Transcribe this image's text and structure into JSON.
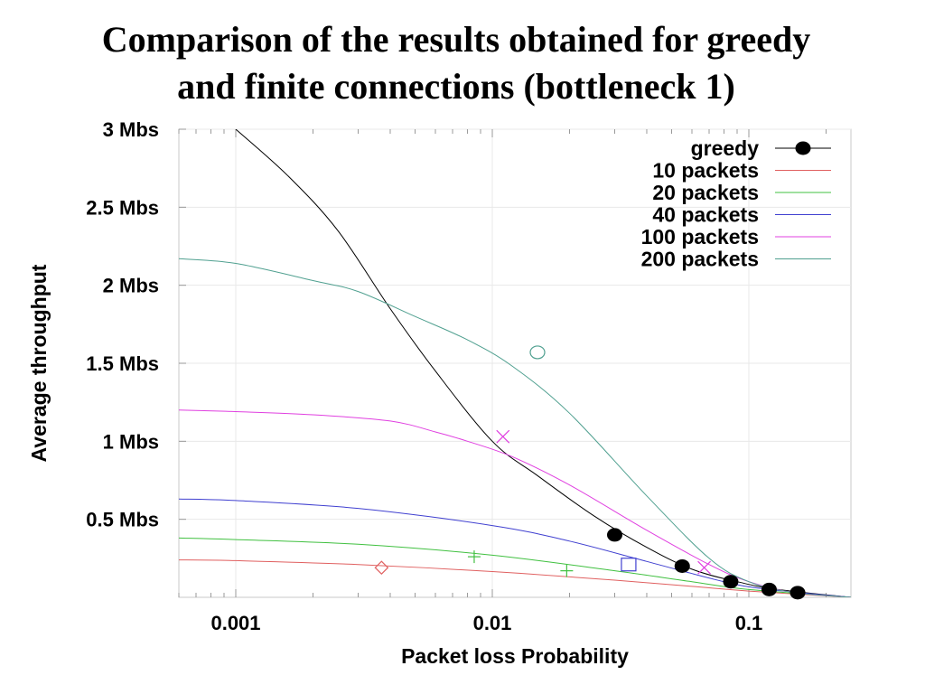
{
  "title": {
    "line1": "Comparison of the results obtained for greedy",
    "line2": "and finite connections (bottleneck 1)"
  },
  "chart_data": {
    "type": "scatter",
    "xlabel": "Packet loss Probability",
    "ylabel": "Average throughput",
    "xscale": "log",
    "xlim": [
      0.0006,
      0.25
    ],
    "ylim": [
      0,
      3
    ],
    "x_ticks": [
      {
        "value": 0.001,
        "label": "0.001"
      },
      {
        "value": 0.01,
        "label": "0.01"
      },
      {
        "value": 0.1,
        "label": "0.1"
      }
    ],
    "y_ticks": [
      {
        "value": 3,
        "label": "3 Mbs"
      },
      {
        "value": 2.5,
        "label": "2.5 Mbs"
      },
      {
        "value": 2,
        "label": "2 Mbs"
      },
      {
        "value": 1.5,
        "label": "1.5 Mbs"
      },
      {
        "value": 1,
        "label": "1 Mbs"
      },
      {
        "value": 0.5,
        "label": "0.5 Mbs"
      }
    ],
    "grid": true,
    "legend_position": "top-right",
    "series": [
      {
        "name": "greedy",
        "color": "#000000",
        "marker": "filled-circle",
        "points": [
          [
            0.03,
            0.4
          ],
          [
            0.055,
            0.2
          ],
          [
            0.085,
            0.1
          ],
          [
            0.12,
            0.05
          ],
          [
            0.155,
            0.03
          ]
        ],
        "curve": [
          [
            0.001,
            3.0
          ],
          [
            0.0016,
            2.7
          ],
          [
            0.0025,
            2.35
          ],
          [
            0.004,
            1.85
          ],
          [
            0.006,
            1.45
          ],
          [
            0.01,
            1.0
          ],
          [
            0.015,
            0.78
          ],
          [
            0.025,
            0.52
          ],
          [
            0.04,
            0.32
          ],
          [
            0.06,
            0.18
          ],
          [
            0.09,
            0.1
          ],
          [
            0.13,
            0.05
          ],
          [
            0.25,
            0.0
          ]
        ]
      },
      {
        "name": "10 packets",
        "color": "#e06060",
        "marker": "diamond",
        "points": [
          [
            0.0037,
            0.19
          ]
        ],
        "curve": [
          [
            0.0006,
            0.24
          ],
          [
            0.001,
            0.235
          ],
          [
            0.003,
            0.21
          ],
          [
            0.01,
            0.165
          ],
          [
            0.03,
            0.11
          ],
          [
            0.06,
            0.07
          ],
          [
            0.1,
            0.04
          ],
          [
            0.25,
            0.0
          ]
        ]
      },
      {
        "name": "20 packets",
        "color": "#40c040",
        "marker": "plus",
        "points": [
          [
            0.0085,
            0.26
          ],
          [
            0.0195,
            0.17
          ]
        ],
        "curve": [
          [
            0.0006,
            0.38
          ],
          [
            0.001,
            0.37
          ],
          [
            0.003,
            0.34
          ],
          [
            0.01,
            0.27
          ],
          [
            0.03,
            0.17
          ],
          [
            0.06,
            0.1
          ],
          [
            0.1,
            0.05
          ],
          [
            0.25,
            0.0
          ]
        ]
      },
      {
        "name": "40 packets",
        "color": "#4040d0",
        "marker": "square",
        "points": [
          [
            0.034,
            0.21
          ]
        ],
        "curve": [
          [
            0.0006,
            0.63
          ],
          [
            0.001,
            0.62
          ],
          [
            0.003,
            0.57
          ],
          [
            0.01,
            0.46
          ],
          [
            0.02,
            0.36
          ],
          [
            0.04,
            0.23
          ],
          [
            0.08,
            0.1
          ],
          [
            0.12,
            0.05
          ],
          [
            0.25,
            0.0
          ]
        ]
      },
      {
        "name": "100 packets",
        "color": "#e040e0",
        "marker": "cross",
        "points": [
          [
            0.011,
            1.03
          ],
          [
            0.067,
            0.19
          ]
        ],
        "curve": [
          [
            0.0006,
            1.2
          ],
          [
            0.001,
            1.19
          ],
          [
            0.002,
            1.17
          ],
          [
            0.004,
            1.13
          ],
          [
            0.006,
            1.06
          ],
          [
            0.008,
            1.0
          ],
          [
            0.012,
            0.9
          ],
          [
            0.02,
            0.72
          ],
          [
            0.04,
            0.43
          ],
          [
            0.07,
            0.21
          ],
          [
            0.1,
            0.1
          ],
          [
            0.15,
            0.03
          ],
          [
            0.25,
            0.0
          ]
        ]
      },
      {
        "name": "200 packets",
        "color": "#50a090",
        "marker": "circle",
        "points": [
          [
            0.015,
            1.57
          ]
        ],
        "curve": [
          [
            0.0006,
            2.17
          ],
          [
            0.001,
            2.14
          ],
          [
            0.002,
            2.03
          ],
          [
            0.003,
            1.96
          ],
          [
            0.005,
            1.8
          ],
          [
            0.008,
            1.65
          ],
          [
            0.012,
            1.48
          ],
          [
            0.02,
            1.18
          ],
          [
            0.04,
            0.65
          ],
          [
            0.07,
            0.25
          ],
          [
            0.1,
            0.1
          ],
          [
            0.15,
            0.03
          ],
          [
            0.25,
            0.0
          ]
        ]
      }
    ]
  }
}
